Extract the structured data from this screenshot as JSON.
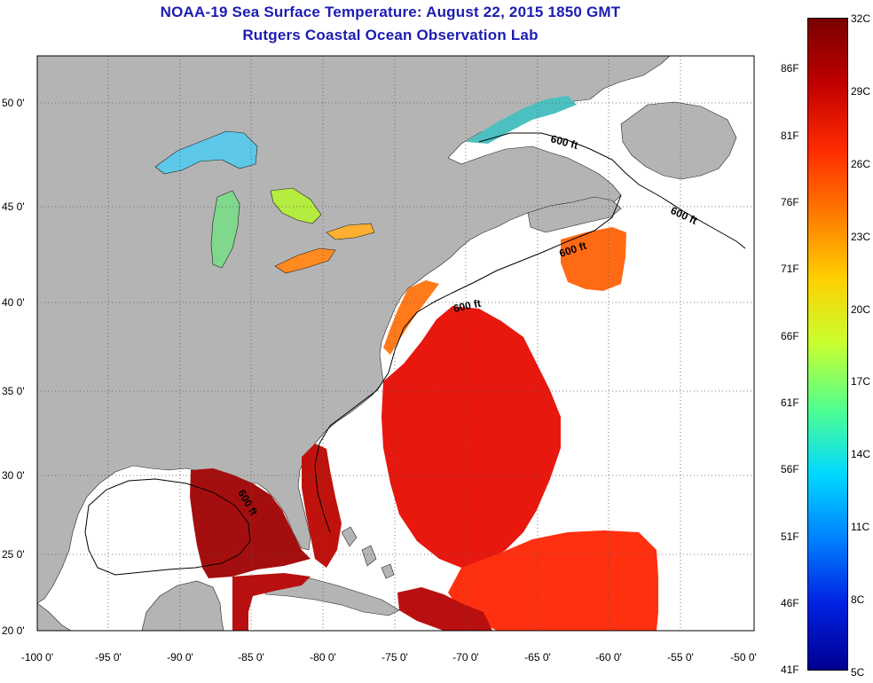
{
  "title_line1": "NOAA-19 Sea Surface Temperature:  August 22, 2015 1850 GMT",
  "title_line2": "Rutgers Coastal Ocean Observation Lab",
  "lat_labels": [
    "50 0'",
    "45 0'",
    "40 0'",
    "35 0'",
    "30 0'",
    "25 0'",
    "20 0'"
  ],
  "lon_labels": [
    "-100 0'",
    "-95 0'",
    "-90 0'",
    "-85 0'",
    "-80 0'",
    "-75 0'",
    "-70 0'",
    "-65 0'",
    "-60 0'",
    "-55 0'",
    "-50 0'"
  ],
  "isobath_label": "600 ft",
  "colorbar": {
    "fahrenheit": [
      "86F",
      "81F",
      "76F",
      "71F",
      "66F",
      "61F",
      "56F",
      "51F",
      "46F",
      "41F"
    ],
    "celsius": [
      "32C",
      "29C",
      "26C",
      "23C",
      "20C",
      "17C",
      "14C",
      "11C",
      "8C",
      "5C"
    ],
    "colors": [
      "#7a0000",
      "#c00000",
      "#ff2a00",
      "#ff7a00",
      "#ffd000",
      "#c8ff30",
      "#50ff90",
      "#00d8ff",
      "#0080ff",
      "#0020e0",
      "#000090"
    ]
  },
  "colors": {
    "land": "#b4b4b4",
    "ocean": "#ffffff",
    "title": "#1c1cb4",
    "warm_gulf": "#a80d0d",
    "gulf_stream": "#e01010"
  }
}
